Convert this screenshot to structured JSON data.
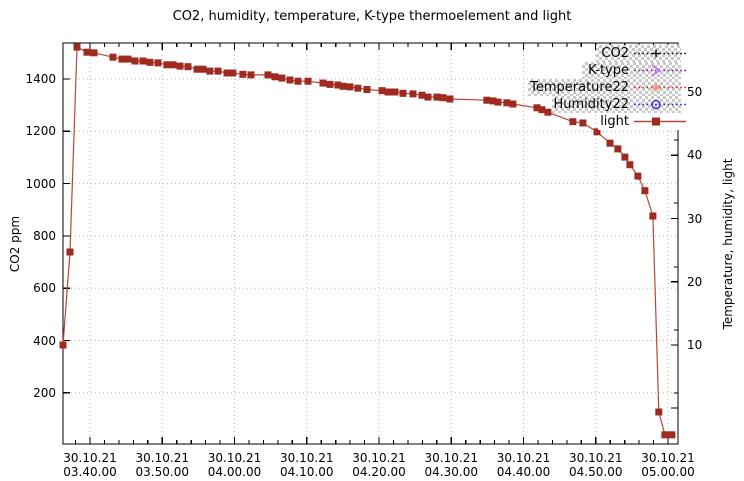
{
  "chart_data": {
    "type": "line",
    "title": "CO2, humidity, temperature, K-type thermoelement and light",
    "x_axis": {
      "kind": "datetime",
      "date_label": "30.10.21",
      "major_tick_times": [
        "03.40.00",
        "03.50.00",
        "04.00.00",
        "04.10.00",
        "04.20.00",
        "04.30.00",
        "04.40.00",
        "04.50.00",
        "05.00.00"
      ],
      "minor_ticks_per_major_interval": 4,
      "range_seconds_rel_0340": [
        -224,
        4882
      ],
      "grid": true
    },
    "y_left": {
      "label": "CO2 ppm",
      "ticks": [
        200,
        400,
        600,
        800,
        1000,
        1200,
        1400
      ],
      "range": [
        4,
        1537
      ],
      "grid": true
    },
    "y_right": {
      "label": "Temperature, humidity, light",
      "ticks": [
        10,
        20,
        30,
        40,
        50
      ],
      "range": [
        -5.7,
        57.7
      ]
    },
    "legend_position": "top-right-inside",
    "legend": [
      {
        "label": "CO2",
        "line_color": "#000000",
        "line_style": "dotted",
        "marker": "plus",
        "marker_color": "#000000",
        "transparent_checker_bg": true
      },
      {
        "label": "K-type",
        "line_color": "#8a00c8",
        "line_style": "dotted",
        "marker": "right-arrow",
        "marker_color": "#b36ef0",
        "transparent_checker_bg": true
      },
      {
        "label": "Temperature22",
        "line_color": "#e02020",
        "line_style": "dotted",
        "marker": "asterisk",
        "marker_color": "#f08878",
        "transparent_checker_bg": true
      },
      {
        "label": "Humidity22",
        "line_color": "#2222dd",
        "line_style": "dotted",
        "marker": "open-circle",
        "marker_color": "#2222dd",
        "transparent_checker_bg": true
      },
      {
        "label": "light",
        "line_color": "#b7453c",
        "line_style": "solid",
        "marker": "filled-square",
        "marker_color": "#9e2a20",
        "transparent_checker_bg": false
      }
    ],
    "series": [
      {
        "name": "CO2",
        "axis": "left",
        "visible_in_plot": false,
        "points": []
      },
      {
        "name": "K-type",
        "axis": "right",
        "visible_in_plot": false,
        "points": []
      },
      {
        "name": "Temperature22",
        "axis": "right",
        "visible_in_plot": false,
        "points": []
      },
      {
        "name": "Humidity22",
        "axis": "right",
        "visible_in_plot": false,
        "points": []
      },
      {
        "name": "light",
        "axis": "right",
        "visible_in_plot": true,
        "x_unit": "seconds after 30.10.21 03.40.00",
        "points": [
          [
            -224,
            10.0
          ],
          [
            -166,
            24.7
          ],
          [
            -108,
            57.1
          ],
          [
            -25,
            56.3
          ],
          [
            33,
            56.2
          ],
          [
            191,
            55.5
          ],
          [
            266,
            55.2
          ],
          [
            316,
            55.2
          ],
          [
            374,
            54.9
          ],
          [
            440,
            54.9
          ],
          [
            498,
            54.7
          ],
          [
            565,
            54.6
          ],
          [
            639,
            54.3
          ],
          [
            689,
            54.3
          ],
          [
            747,
            54.1
          ],
          [
            814,
            54.0
          ],
          [
            889,
            53.6
          ],
          [
            938,
            53.6
          ],
          [
            996,
            53.3
          ],
          [
            1063,
            53.3
          ],
          [
            1138,
            53.0
          ],
          [
            1187,
            53.0
          ],
          [
            1270,
            52.8
          ],
          [
            1337,
            52.7
          ],
          [
            1478,
            52.7
          ],
          [
            1536,
            52.4
          ],
          [
            1594,
            52.2
          ],
          [
            1661,
            51.9
          ],
          [
            1727,
            51.7
          ],
          [
            1810,
            51.7
          ],
          [
            1935,
            51.4
          ],
          [
            1993,
            51.2
          ],
          [
            2059,
            51.1
          ],
          [
            2101,
            50.9
          ],
          [
            2159,
            50.8
          ],
          [
            2225,
            50.6
          ],
          [
            2300,
            50.4
          ],
          [
            2425,
            50.2
          ],
          [
            2475,
            50.0
          ],
          [
            2533,
            50.0
          ],
          [
            2599,
            49.8
          ],
          [
            2682,
            49.7
          ],
          [
            2757,
            49.5
          ],
          [
            2807,
            49.2
          ],
          [
            2881,
            49.2
          ],
          [
            2931,
            49.1
          ],
          [
            2989,
            48.9
          ],
          [
            3296,
            48.7
          ],
          [
            3346,
            48.6
          ],
          [
            3388,
            48.4
          ],
          [
            3462,
            48.3
          ],
          [
            3512,
            48.1
          ],
          [
            3712,
            47.5
          ],
          [
            3753,
            47.2
          ],
          [
            3803,
            46.8
          ],
          [
            4010,
            45.3
          ],
          [
            4093,
            45.1
          ],
          [
            4210,
            43.7
          ],
          [
            4318,
            41.9
          ],
          [
            4384,
            41.0
          ],
          [
            4442,
            39.7
          ],
          [
            4484,
            38.5
          ],
          [
            4550,
            36.7
          ],
          [
            4608,
            34.4
          ],
          [
            4675,
            30.4
          ],
          [
            4724,
            -0.6
          ],
          [
            4774,
            -4.2
          ],
          [
            4832,
            -4.2
          ]
        ]
      }
    ],
    "grid_color": "#b8b8b8",
    "border_color": "#000000"
  }
}
